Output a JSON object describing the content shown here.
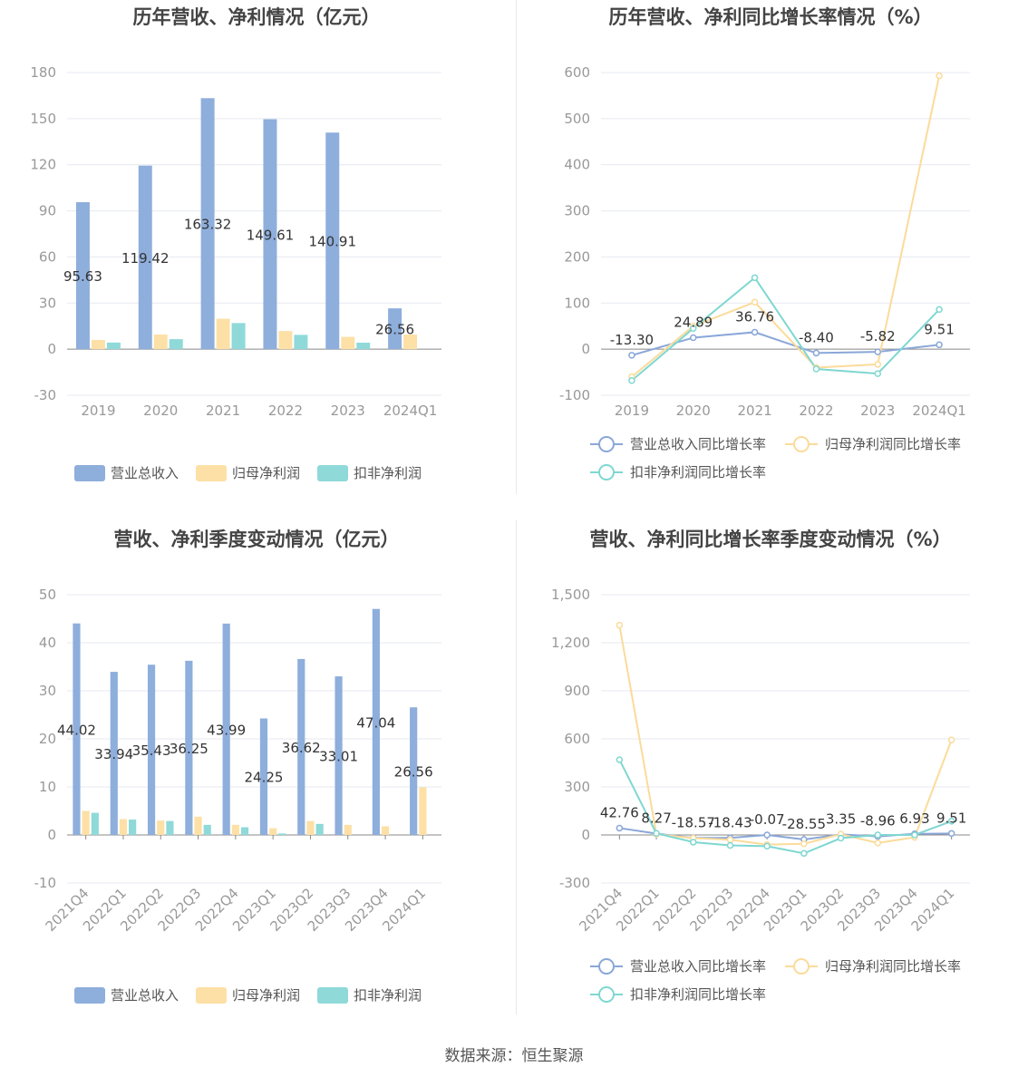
{
  "source": "数据来源：恒生聚源",
  "colors": {
    "revenue": "#8eaedc",
    "net_profit": "#fde0a6",
    "deducted_profit": "#8fd9d9",
    "revenue_line": "#8aa7d8",
    "net_profit_line": "#fbdb9a",
    "deducted_line": "#7fd7d1",
    "axis_text": "#999999",
    "grid": "#e6e9f0"
  },
  "chart_data": [
    {
      "type": "bar",
      "title": "历年营收、净利情况（亿元）",
      "categories": [
        "2019",
        "2020",
        "2021",
        "2022",
        "2023",
        "2024Q1"
      ],
      "ylim": [
        -30,
        180
      ],
      "yticks": [
        "180",
        "150",
        "120",
        "90",
        "60",
        "30",
        "0",
        "-30"
      ],
      "ytick_values": [
        180,
        150,
        120,
        90,
        60,
        30,
        0,
        -30
      ],
      "series": [
        {
          "name": "营业总收入",
          "values": [
            95.63,
            119.42,
            163.32,
            149.61,
            140.91,
            26.56
          ],
          "labels": [
            "95.63",
            "119.42",
            "163.32",
            "149.61",
            "140.91",
            "26.56"
          ]
        },
        {
          "name": "归母净利润",
          "values": [
            6.0,
            9.5,
            19.8,
            11.8,
            8.0,
            9.5
          ]
        },
        {
          "name": "扣非净利润",
          "values": [
            4.3,
            6.5,
            17.0,
            9.3,
            4.2,
            0
          ]
        }
      ],
      "legend": "bottom"
    },
    {
      "type": "line",
      "title": "历年营收、净利同比增长率情况（%）",
      "categories": [
        "2019",
        "2020",
        "2021",
        "2022",
        "2023",
        "2024Q1"
      ],
      "ylim": [
        -100,
        600
      ],
      "yticks": [
        "600",
        "500",
        "400",
        "300",
        "200",
        "100",
        "0",
        "-100"
      ],
      "ytick_values": [
        600,
        500,
        400,
        300,
        200,
        100,
        0,
        -100
      ],
      "series": [
        {
          "name": "营业总收入同比增长率",
          "values": [
            -13.3,
            24.89,
            36.76,
            -8.4,
            -5.82,
            9.51
          ],
          "labels": [
            "-13.30",
            "24.89",
            "36.76",
            "-8.40",
            "-5.82",
            "9.51"
          ]
        },
        {
          "name": "归母净利润同比增长率",
          "values": [
            -60,
            50,
            102,
            -40,
            -33,
            593
          ]
        },
        {
          "name": "扣非净利润同比增长率",
          "values": [
            -68,
            45,
            155,
            -43,
            -53,
            86
          ]
        }
      ],
      "legend": "bottom"
    },
    {
      "type": "bar",
      "title": "营收、净利季度变动情况（亿元）",
      "categories": [
        "2021Q4",
        "2022Q1",
        "2022Q2",
        "2022Q3",
        "2022Q4",
        "2023Q1",
        "2023Q2",
        "2023Q3",
        "2023Q4",
        "2024Q1"
      ],
      "ylim": [
        -10,
        50
      ],
      "yticks": [
        "50",
        "40",
        "30",
        "20",
        "10",
        "0",
        "-10"
      ],
      "ytick_values": [
        50,
        40,
        30,
        20,
        10,
        0,
        -10
      ],
      "series": [
        {
          "name": "营业总收入",
          "values": [
            44.02,
            33.94,
            35.43,
            36.25,
            43.99,
            24.25,
            36.62,
            33.01,
            47.04,
            26.56
          ],
          "labels": [
            "44.02",
            "33.94",
            "35.43",
            "36.25",
            "43.99",
            "24.25",
            "36.62",
            "33.01",
            "47.04",
            "26.56"
          ]
        },
        {
          "name": "归母净利润",
          "values": [
            5.0,
            3.3,
            3.0,
            3.8,
            2.1,
            1.4,
            2.9,
            2.1,
            1.8,
            9.9
          ]
        },
        {
          "name": "扣非净利润",
          "values": [
            4.6,
            3.2,
            2.9,
            2.1,
            1.6,
            0.3,
            2.3,
            0,
            0,
            0
          ]
        }
      ],
      "legend": "bottom"
    },
    {
      "type": "line",
      "title": "营收、净利同比增长率季度变动情况（%）",
      "categories": [
        "2021Q4",
        "2022Q1",
        "2022Q2",
        "2022Q3",
        "2022Q4",
        "2023Q1",
        "2023Q2",
        "2023Q3",
        "2023Q4",
        "2024Q1"
      ],
      "ylim": [
        -300,
        1500
      ],
      "yticks": [
        "1,500",
        "1,200",
        "900",
        "600",
        "300",
        "0",
        "-300"
      ],
      "ytick_values": [
        1500,
        1200,
        900,
        600,
        300,
        0,
        -300
      ],
      "series": [
        {
          "name": "营业总收入同比增长率",
          "values": [
            42.76,
            8.27,
            -18.57,
            -18.43,
            -0.07,
            -28.55,
            3.35,
            -8.96,
            6.93,
            9.51
          ],
          "labels": [
            "42.76",
            "8.27",
            "-18.57",
            "-18.43",
            "-0.07",
            "-28.55",
            "3.35",
            "-8.96",
            "6.93",
            "9.51"
          ]
        },
        {
          "name": "归母净利润同比增长率",
          "values": [
            1310,
            5,
            -20,
            -30,
            -60,
            -55,
            5,
            -50,
            -15,
            593
          ]
        },
        {
          "name": "扣非净利润同比增长率",
          "values": [
            470,
            10,
            -45,
            -65,
            -70,
            -115,
            -20,
            0,
            0,
            86
          ]
        }
      ],
      "legend": "bottom"
    }
  ]
}
